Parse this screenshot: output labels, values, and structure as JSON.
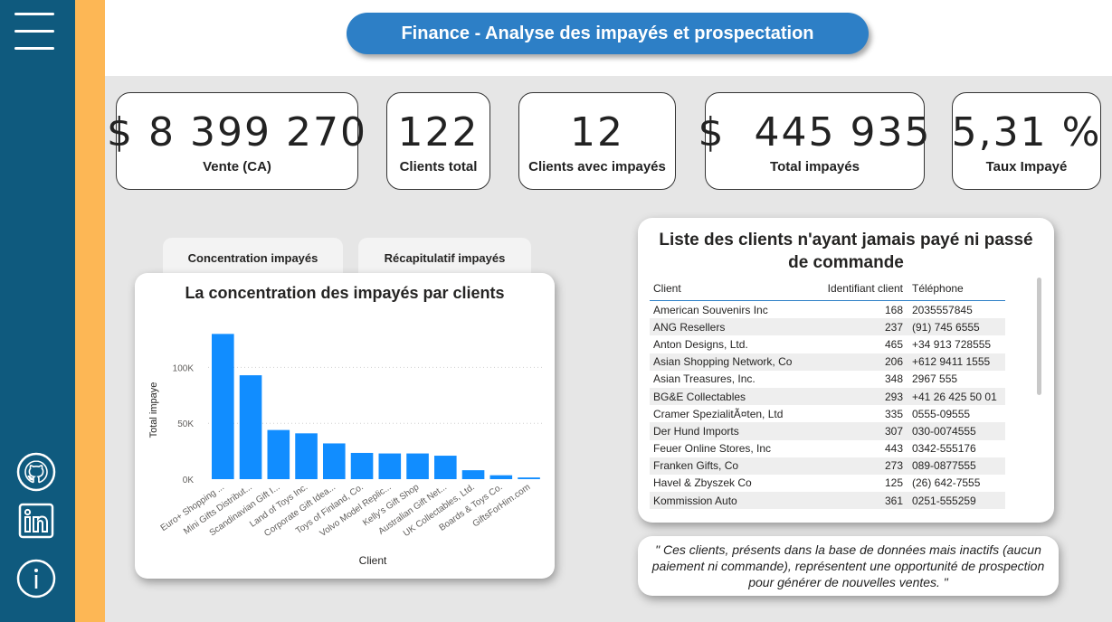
{
  "sidebar": {
    "menu_icon": "hamburger-icon",
    "icons": [
      "github-icon",
      "linkedin-icon",
      "info-icon"
    ]
  },
  "header": {
    "title": "Finance - Analyse des impayés et prospectation"
  },
  "kpis": [
    {
      "value": "$ 8 399 270",
      "label": "Vente (CA)"
    },
    {
      "value": "122",
      "label": "Clients total"
    },
    {
      "value": "12",
      "label": "Clients avec impayés"
    },
    {
      "value": "$  445 935",
      "label": "Total impayés"
    },
    {
      "value": "5,31 %",
      "label": "Taux Impayé"
    }
  ],
  "tabs": [
    "Concentration impayés",
    "Récapitulatif impayés"
  ],
  "chart_data": {
    "type": "bar",
    "title": "La concentration des impayés par clients",
    "xlabel": "Client",
    "ylabel": "Total impaye",
    "ylim": [
      0,
      140000
    ],
    "yticks": [
      "0K",
      "50K",
      "100K"
    ],
    "ytick_values": [
      0,
      50000,
      100000
    ],
    "categories": [
      "Euro+ Shopping ...",
      "Mini Gifts Distribut...",
      "Scandinavian Gift I...",
      "Land of Toys Inc.",
      "Corporate Gift Idea...",
      "Toys of Finland, Co.",
      "Volvo Model Replic...",
      "Kelly's Gift Shop",
      "Australian Gift Net...",
      "UK Collectables, Ltd.",
      "Boards & Toys Co.",
      "GiftsForHim.com"
    ],
    "values": [
      130000,
      93000,
      44000,
      41000,
      32000,
      23500,
      23000,
      23000,
      21000,
      8000,
      3500,
      1500
    ],
    "color": "#118dff",
    "grid": true
  },
  "table": {
    "title": "Liste des clients n'ayant jamais payé ni passé de commande",
    "columns": [
      "Client",
      "Identifiant client",
      "Téléphone"
    ],
    "rows": [
      [
        "American Souvenirs Inc",
        "168",
        "2035557845"
      ],
      [
        "ANG Resellers",
        "237",
        "(91) 745 6555"
      ],
      [
        "Anton Designs, Ltd.",
        "465",
        "+34 913 728555"
      ],
      [
        "Asian Shopping Network, Co",
        "206",
        "+612 9411 1555"
      ],
      [
        "Asian Treasures, Inc.",
        "348",
        "2967 555"
      ],
      [
        "BG&E Collectables",
        "293",
        "+41 26 425 50 01"
      ],
      [
        "Cramer SpezialitÃ¤ten, Ltd",
        "335",
        "0555-09555"
      ],
      [
        "Der Hund Imports",
        "307",
        "030-0074555"
      ],
      [
        "Feuer Online Stores, Inc",
        "443",
        "0342-555176"
      ],
      [
        "Franken Gifts, Co",
        "273",
        "089-0877555"
      ],
      [
        "Havel & Zbyszek Co",
        "125",
        "(26) 642-7555"
      ],
      [
        "Kommission Auto",
        "361",
        "0251-555259"
      ]
    ]
  },
  "quote": "\" Ces clients, présents dans la base de données mais inactifs (aucun paiement ni commande), représentent une opportunité de prospection pour générer de nouvelles ventes. \"",
  "colors": {
    "sidebar": "#0f5a7e",
    "stripe": "#fdb755",
    "accent": "#2d7fc6",
    "bar": "#118dff"
  }
}
